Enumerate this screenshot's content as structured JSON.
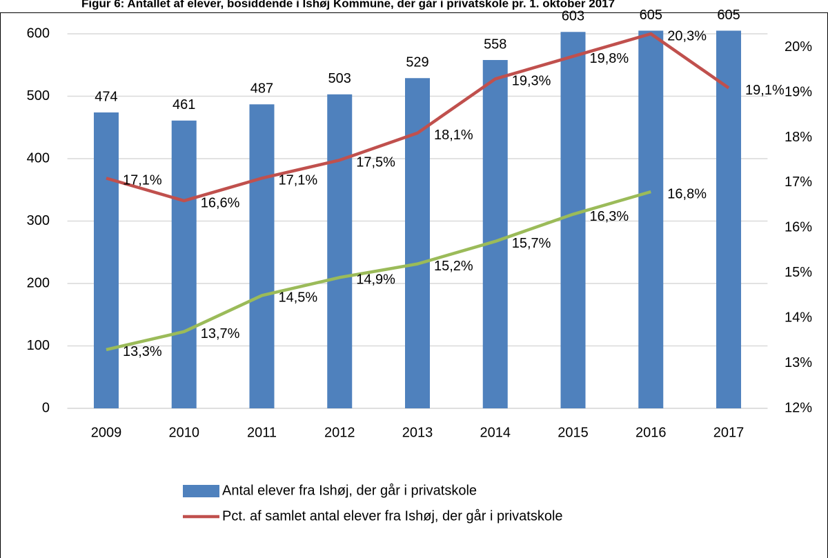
{
  "chart_data": {
    "type": "combo",
    "title": "Figur 6: Antallet af elever, bosiddende i Ishøj Kommune, der går i privatskole pr. 1. oktober 2017",
    "categories": [
      "2009",
      "2010",
      "2011",
      "2012",
      "2013",
      "2014",
      "2015",
      "2016",
      "2017"
    ],
    "series": [
      {
        "name": "Antal elever fra Ishøj, der går i privatskole",
        "type": "bar",
        "color": "#4f81bd",
        "values": [
          474,
          461,
          487,
          503,
          529,
          558,
          603,
          605,
          605
        ]
      },
      {
        "name": "Pct. af samlet antal elever fra Ishøj, der går i privatskole",
        "type": "line",
        "axis": "y2",
        "color": "#c0504d",
        "values": [
          17.1,
          16.6,
          17.1,
          17.5,
          18.1,
          19.3,
          19.8,
          20.3,
          19.1
        ],
        "value_labels": [
          "17,1%",
          "16,6%",
          "17,1%",
          "17,5%",
          "18,1%",
          "19,3%",
          "19,8%",
          "20,3%",
          "19,1%"
        ]
      },
      {
        "type": "line",
        "axis": "y2",
        "color": "#9bbb59",
        "values": [
          13.3,
          13.7,
          14.5,
          14.9,
          15.2,
          15.7,
          16.3,
          16.8,
          null
        ],
        "value_labels": [
          "13,3%",
          "13,7%",
          "14,5%",
          "14,9%",
          "15,2%",
          "15,7%",
          "16,3%",
          "16,8%",
          null
        ]
      }
    ],
    "ylim": [
      0,
      600
    ],
    "yticks": [
      0,
      100,
      200,
      300,
      400,
      500,
      600
    ],
    "y2lim": [
      12,
      20.3
    ],
    "y2ticks": [
      {
        "value": 12,
        "label": "12%"
      },
      {
        "value": 13,
        "label": "13%"
      },
      {
        "value": 14,
        "label": "14%"
      },
      {
        "value": 15,
        "label": "15%"
      },
      {
        "value": 16,
        "label": "16%"
      },
      {
        "value": 17,
        "label": "17%"
      },
      {
        "value": 18,
        "label": "18%"
      },
      {
        "value": 19,
        "label": "19%"
      },
      {
        "value": 20,
        "label": "20%"
      }
    ],
    "grid": true,
    "legend": "bottom"
  }
}
